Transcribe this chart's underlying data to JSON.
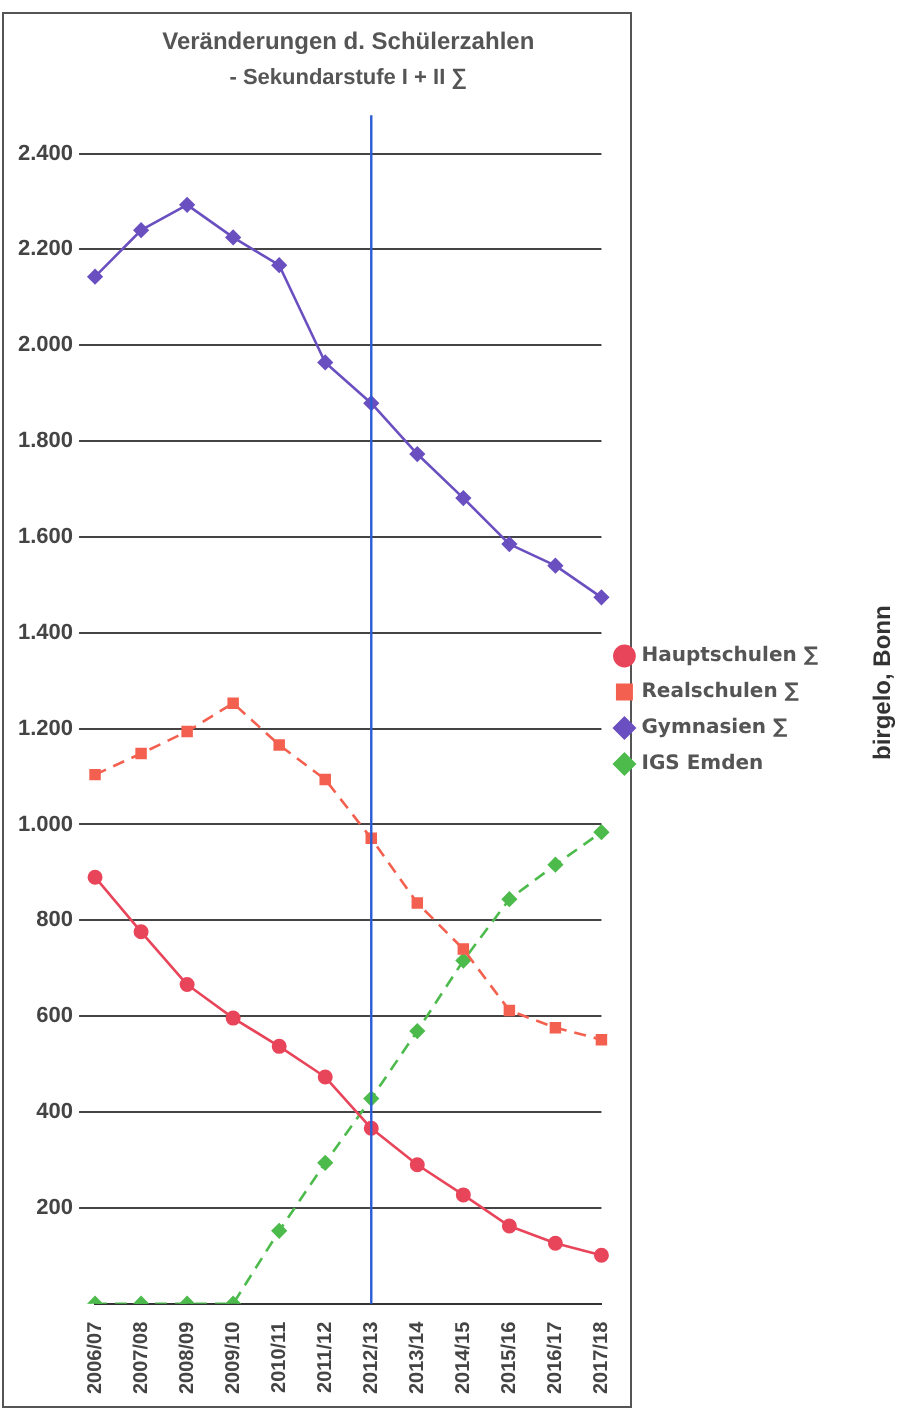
{
  "chart_data": {
    "type": "line",
    "title": "Veränderungen d. Schülerzahlen",
    "subtitle": "- Sekundarstufe I + II ∑",
    "categories": [
      "2006/07",
      "2007/08",
      "2008/09",
      "2009/10",
      "2010/11",
      "2011/12",
      "2012/13",
      "2013/14",
      "2014/15",
      "2015/16",
      "2016/17",
      "2017/18"
    ],
    "series": [
      {
        "name": "Hauptschulen ∑",
        "color": "#e8455a",
        "marker": "circle",
        "line_style": "solid",
        "values": [
          890,
          776,
          666,
          596,
          537,
          473,
          366,
          290,
          227,
          162,
          126,
          101
        ]
      },
      {
        "name": "Realschulen ∑",
        "color": "#f4604f",
        "marker": "square",
        "line_style": "dashed",
        "values": [
          1104,
          1148,
          1194,
          1253,
          1166,
          1094,
          971,
          836,
          740,
          612,
          576,
          551
        ]
      },
      {
        "name": "Gymnasien ∑",
        "color": "#6a4fc0",
        "marker": "diamond",
        "line_style": "solid",
        "values": [
          2143,
          2240,
          2293,
          2225,
          2167,
          1964,
          1879,
          1773,
          1681,
          1585,
          1540,
          1474
        ]
      },
      {
        "name": "IGS Emden",
        "color": "#4cbb4c",
        "marker": "diamond",
        "line_style": "dashed",
        "values": [
          0,
          0,
          0,
          0,
          152,
          294,
          428,
          569,
          716,
          844,
          916,
          984
        ]
      }
    ],
    "ylim": [
      0,
      2480
    ],
    "yticks": [
      {
        "value": 200,
        "label": "200"
      },
      {
        "value": 400,
        "label": "400"
      },
      {
        "value": 600,
        "label": "600"
      },
      {
        "value": 800,
        "label": "800"
      },
      {
        "value": 1000,
        "label": "1.000"
      },
      {
        "value": 1200,
        "label": "1.200"
      },
      {
        "value": 1400,
        "label": "1.400"
      },
      {
        "value": 1600,
        "label": "1.600"
      },
      {
        "value": 1800,
        "label": "1.800"
      },
      {
        "value": 2000,
        "label": "2.000"
      },
      {
        "value": 2200,
        "label": "2.200"
      },
      {
        "value": 2400,
        "label": "2.400"
      }
    ],
    "grid": "y",
    "legend": "right",
    "ref_lines": [
      {
        "axis": "x",
        "value": "2012/13",
        "color": "#2a5cd6"
      }
    ],
    "annotations": [
      "birgelo, Bonn"
    ]
  }
}
